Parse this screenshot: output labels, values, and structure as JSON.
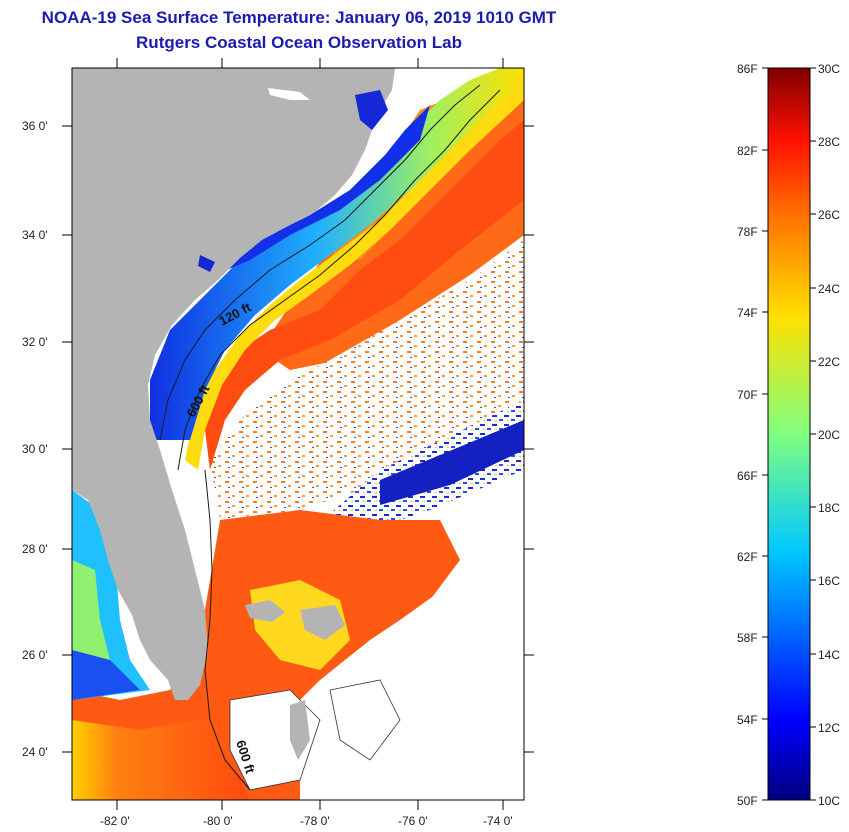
{
  "header": {
    "title": "NOAA-19 Sea Surface Temperature:  January 06, 2019 1010 GMT",
    "subtitle": "Rutgers Coastal Ocean Observation Lab"
  },
  "colors": {
    "title": "#1b1bb0",
    "land": "#b4b4b4",
    "warm": "#ff5a10",
    "cool": "#1a40e0",
    "cloud": "#ffffff"
  },
  "map": {
    "latitude_labels": [
      "36 0'",
      "34 0'",
      "32 0'",
      "30 0'",
      "28 0'",
      "26 0'",
      "24 0'"
    ],
    "longitude_labels": [
      "-82 0'",
      "-80 0'",
      "-78 0'",
      "-76 0'",
      "-74 0'"
    ],
    "contour_labels": [
      "120 ft",
      "600 ft",
      "600 ft"
    ]
  },
  "colorbar": {
    "fahrenheit_labels": [
      "86F",
      "82F",
      "78F",
      "74F",
      "70F",
      "66F",
      "62F",
      "58F",
      "54F",
      "50F"
    ],
    "celsius_labels": [
      "30C",
      "28C",
      "26C",
      "24C",
      "22C",
      "20C",
      "18C",
      "16C",
      "14C",
      "12C",
      "10C"
    ],
    "range_celsius": [
      10,
      30
    ],
    "range_fahrenheit": [
      50,
      86
    ],
    "palette": "jet"
  }
}
